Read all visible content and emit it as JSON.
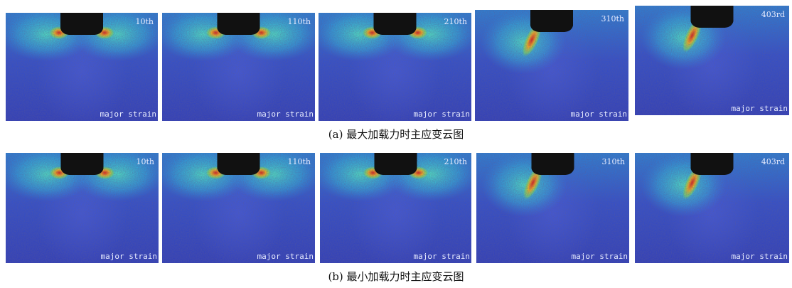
{
  "figure": {
    "rows": [
      {
        "caption": "(a) 最大加载力时主应变云图",
        "panels": [
          {
            "step": "10th",
            "label": "major strain"
          },
          {
            "step": "110th",
            "label": "major strain"
          },
          {
            "step": "210th",
            "label": "major strain"
          },
          {
            "step": "310th",
            "label": "major strain"
          },
          {
            "step": "403rd",
            "label": "major strain"
          }
        ]
      },
      {
        "caption": "(b) 最小加载力时主应变云图",
        "panels": [
          {
            "step": "10th",
            "label": "major strain"
          },
          {
            "step": "110th",
            "label": "major strain"
          },
          {
            "step": "210th",
            "label": "major strain"
          },
          {
            "step": "310th",
            "label": "major strain"
          },
          {
            "step": "403rd",
            "label": "major strain"
          }
        ]
      }
    ]
  }
}
